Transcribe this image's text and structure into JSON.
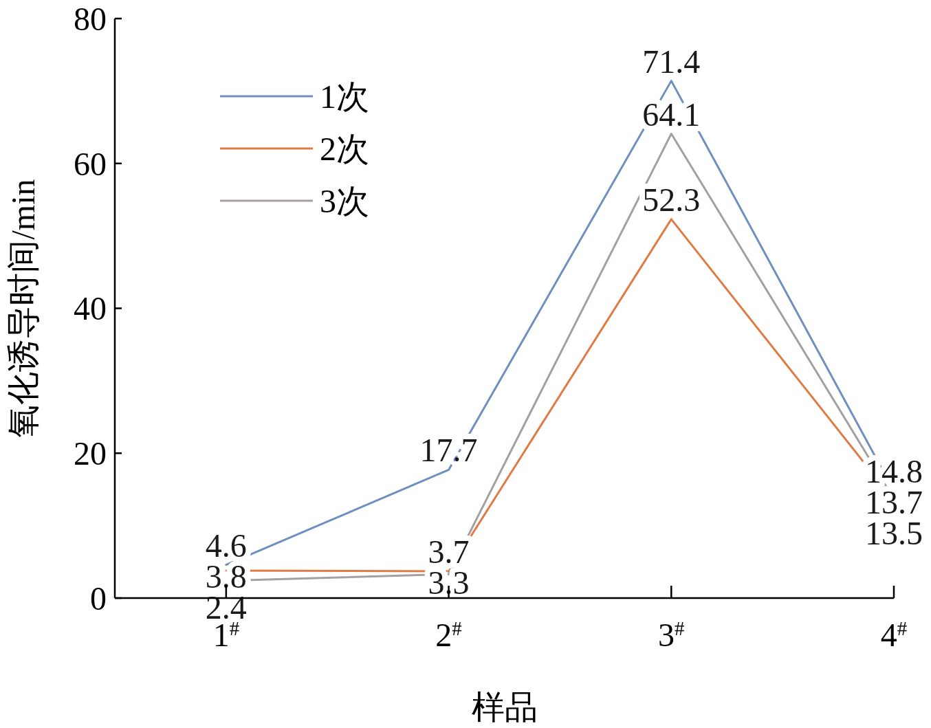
{
  "chart_data": {
    "type": "line",
    "xlabel": "样品",
    "ylabel": "氧化诱导时间/min",
    "categories": [
      "1$^{#}$",
      "2$^{#}$",
      "3$^{#}$",
      "4$^{#}$"
    ],
    "series": [
      {
        "name": "1次",
        "color": "#6f8fbf",
        "values": [
          4.6,
          17.7,
          71.4,
          14.8
        ]
      },
      {
        "name": "2次",
        "color": "#e07b45",
        "values": [
          3.8,
          3.7,
          52.3,
          13.5
        ]
      },
      {
        "name": "3次",
        "color": "#a5a0a0",
        "values": [
          2.4,
          3.3,
          64.1,
          13.7
        ]
      }
    ],
    "ylim": [
      0,
      80
    ],
    "yticks": [
      0,
      20,
      40,
      60,
      80
    ],
    "data_labels": true,
    "legend": "top left",
    "marker": "none",
    "line_style": "solid"
  }
}
